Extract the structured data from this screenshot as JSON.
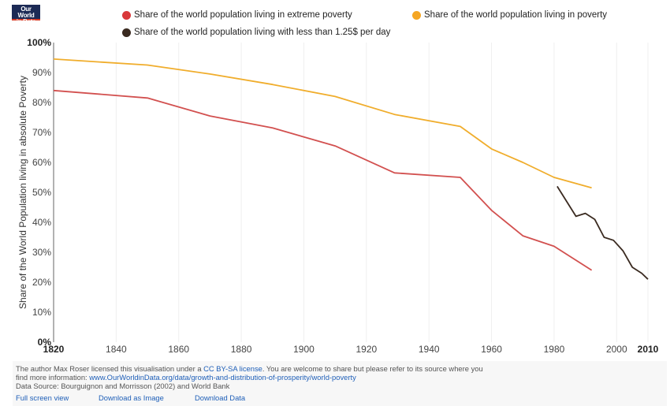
{
  "logo": {
    "line1": "Our World",
    "line2": "in Data"
  },
  "chart_data": {
    "type": "line",
    "title": "",
    "xlabel": "",
    "ylabel": "Share of the World Population living in absolute Poverty",
    "xlim": [
      1820,
      2010
    ],
    "ylim": [
      0,
      100
    ],
    "grid": true,
    "legend_position": "top",
    "x_ticks": [
      {
        "value": 1820,
        "label": "1820",
        "bold": true
      },
      {
        "value": 1840,
        "label": "1840",
        "bold": false
      },
      {
        "value": 1860,
        "label": "1860",
        "bold": false
      },
      {
        "value": 1880,
        "label": "1880",
        "bold": false
      },
      {
        "value": 1900,
        "label": "1900",
        "bold": false
      },
      {
        "value": 1920,
        "label": "1920",
        "bold": false
      },
      {
        "value": 1940,
        "label": "1940",
        "bold": false
      },
      {
        "value": 1960,
        "label": "1960",
        "bold": false
      },
      {
        "value": 1980,
        "label": "1980",
        "bold": false
      },
      {
        "value": 2000,
        "label": "2000",
        "bold": false
      },
      {
        "value": 2010,
        "label": "2010",
        "bold": true
      }
    ],
    "y_ticks": [
      {
        "value": 0,
        "label": "0%",
        "bold": true
      },
      {
        "value": 10,
        "label": "10%",
        "bold": false
      },
      {
        "value": 20,
        "label": "20%",
        "bold": false
      },
      {
        "value": 30,
        "label": "30%",
        "bold": false
      },
      {
        "value": 40,
        "label": "40%",
        "bold": false
      },
      {
        "value": 50,
        "label": "50%",
        "bold": false
      },
      {
        "value": 60,
        "label": "60%",
        "bold": false
      },
      {
        "value": 70,
        "label": "70%",
        "bold": false
      },
      {
        "value": 80,
        "label": "80%",
        "bold": false
      },
      {
        "value": 90,
        "label": "90%",
        "bold": false
      },
      {
        "value": 100,
        "label": "100%",
        "bold": true
      }
    ],
    "series": [
      {
        "name": "Share of the world population living in extreme poverty",
        "color": "#d2504f",
        "x": [
          1820,
          1850,
          1870,
          1890,
          1910,
          1929,
          1950,
          1960,
          1970,
          1980,
          1992
        ],
        "values": [
          84,
          81.5,
          75.5,
          71.5,
          65.5,
          56.5,
          55,
          44,
          35.5,
          32,
          24
        ]
      },
      {
        "name": "Share of the world population living in poverty",
        "color": "#f0ad2c",
        "x": [
          1820,
          1850,
          1870,
          1890,
          1910,
          1929,
          1950,
          1960,
          1970,
          1980,
          1992
        ],
        "values": [
          94.5,
          92.5,
          89.5,
          86,
          82,
          76,
          72,
          64.5,
          60,
          55,
          51.5
        ]
      },
      {
        "name": "Share of the world population living with less than 1.25$ per day",
        "color": "#3a2a20",
        "x": [
          1981,
          1984,
          1987,
          1990,
          1993,
          1996,
          1999,
          2002,
          2005,
          2008,
          2010
        ],
        "values": [
          52,
          47,
          42,
          43,
          41,
          35,
          34,
          30.5,
          25,
          23,
          21
        ]
      }
    ]
  },
  "legend": [
    {
      "label": "Share of the world population living in extreme poverty",
      "color": "#d9383a"
    },
    {
      "label": "Share of the world population living in poverty",
      "color": "#f5a623"
    },
    {
      "label": "Share of the world population living with less than 1.25$ per day",
      "color": "#3a2a20"
    }
  ],
  "footer": {
    "line1_pre": "The author Max Roser licensed this visualisation under a ",
    "license_link": "CC BY-SA license",
    "line1_post": ". You are welcome to share but please refer to its source where you",
    "line2_pre": "find more information: ",
    "source_link": "www.OurWorldinData.org/data/growth-and-distribution-of-prosperity/world-poverty",
    "line3": "Data Source: Bourguignon and Morrisson (2002) and World Bank",
    "links": [
      "Full screen view",
      "Download as Image",
      "Download Data"
    ]
  }
}
